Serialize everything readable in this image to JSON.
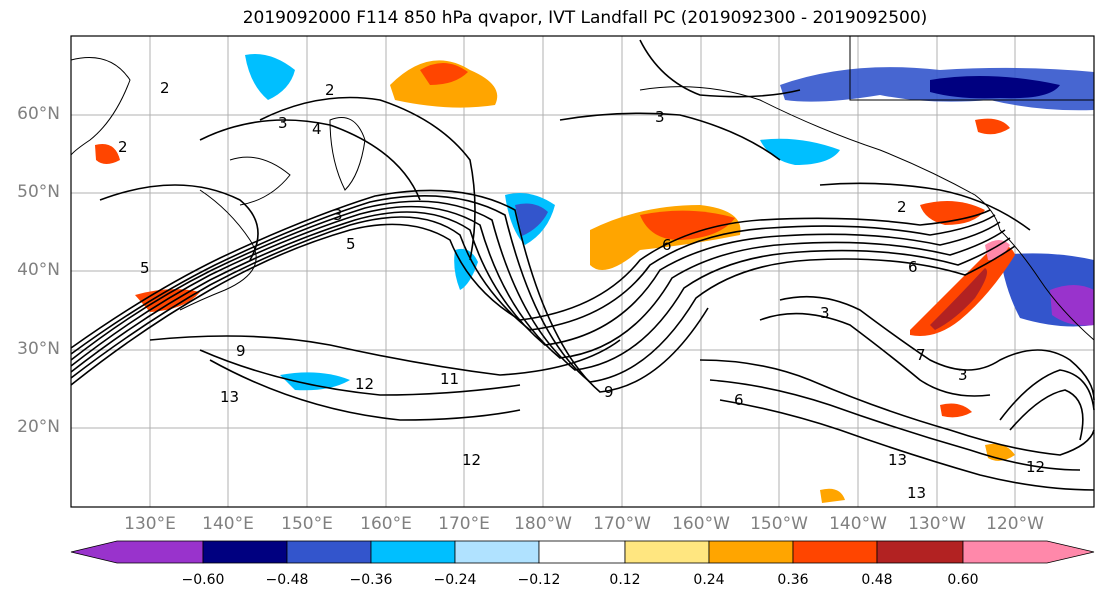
{
  "title": "2019092000 F114 850 hPa qvapor, IVT Landfall PC (2019092300 - 2019092500)",
  "map": {
    "lat_labels": [
      "60°N",
      "50°N",
      "40°N",
      "30°N",
      "20°N"
    ],
    "lon_labels": [
      "130°E",
      "140°E",
      "150°E",
      "160°E",
      "170°E",
      "180°W",
      "170°W",
      "160°W",
      "150°W",
      "140°W",
      "130°W",
      "120°W"
    ],
    "contour_labels": [
      "2",
      "3",
      "4",
      "5",
      "3",
      "2",
      "3",
      "5",
      "9",
      "12",
      "13",
      "11",
      "12",
      "9",
      "6",
      "2",
      "3",
      "7",
      "3",
      "13",
      "12",
      "13",
      "6",
      "6",
      "2"
    ]
  },
  "colorbar": {
    "ticks": [
      "−0.60",
      "−0.48",
      "−0.36",
      "−0.24",
      "−0.12",
      "0.12",
      "0.24",
      "0.36",
      "0.48",
      "0.60"
    ],
    "colors": [
      "#9933cc",
      "#000080",
      "#3355cc",
      "#00bfff",
      "#b0e2ff",
      "#ffffff",
      "#ffe680",
      "#ffa500",
      "#ff4500",
      "#b22222",
      "#ff88aa"
    ]
  }
}
